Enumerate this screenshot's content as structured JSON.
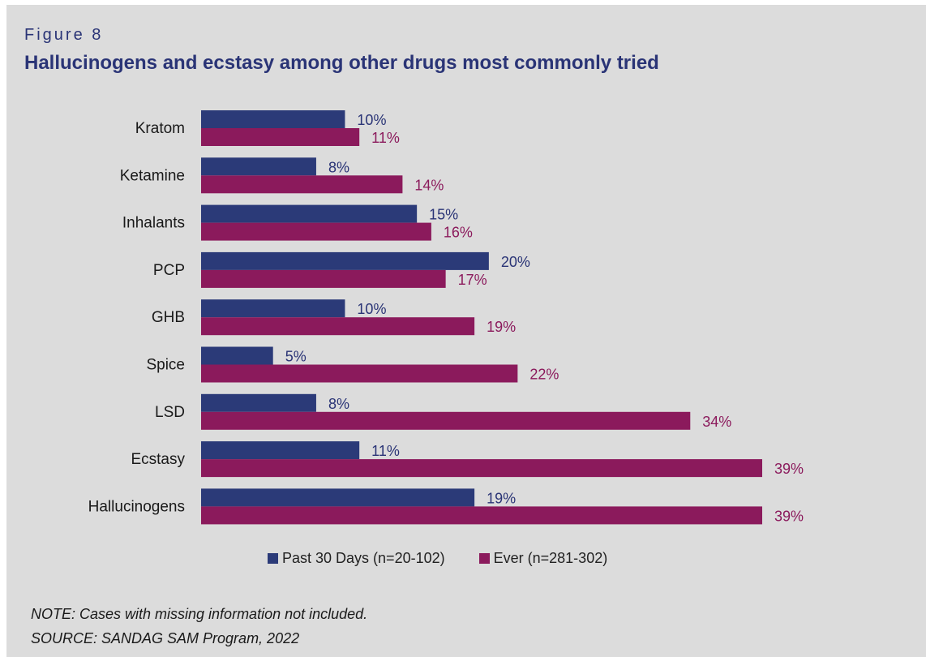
{
  "figure_label": "Figure 8",
  "title": "Hallucinogens and ecstasy among other drugs most commonly tried",
  "note": "NOTE: Cases with missing information not included.",
  "source": "SOURCE: SANDAG SAM Program, 2022",
  "colors": {
    "past30": "#2b3a78",
    "ever": "#8b1a5c",
    "background": "#dcdcdc"
  },
  "chart_data": {
    "type": "bar",
    "orientation": "horizontal",
    "categories": [
      "Kratom",
      "Ketamine",
      "Inhalants",
      "PCP",
      "GHB",
      "Spice",
      "LSD",
      "Ecstasy",
      "Hallucinogens"
    ],
    "series": [
      {
        "name": "Past 30 Days (n=20-102)",
        "values": [
          10,
          8,
          15,
          20,
          10,
          5,
          8,
          11,
          19
        ],
        "labels": [
          "10%",
          "8%",
          "15%",
          "20%",
          "10%",
          "5%",
          "8%",
          "11%",
          "19%"
        ]
      },
      {
        "name": "Ever (n=281-302)",
        "values": [
          11,
          14,
          16,
          17,
          19,
          22,
          34,
          39,
          39
        ],
        "labels": [
          "11%",
          "14%",
          "16%",
          "17%",
          "19%",
          "22%",
          "34%",
          "39%",
          "39%"
        ]
      }
    ],
    "xlim": [
      0,
      39
    ],
    "grid": false,
    "legend_position": "bottom"
  }
}
